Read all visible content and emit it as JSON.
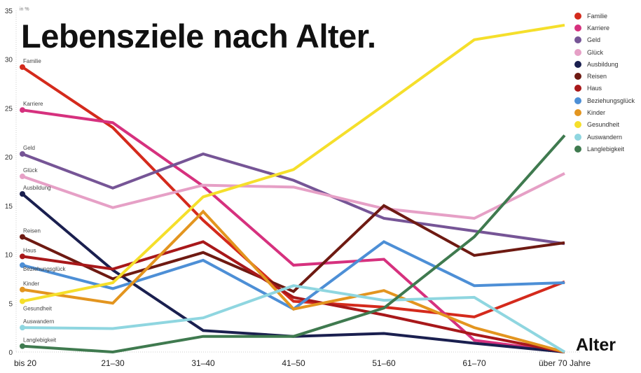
{
  "chart_data": {
    "type": "line",
    "title": "Lebensziele nach Alter.",
    "ylabel": "in %",
    "xlabel": "Alter",
    "ylim": [
      0,
      35
    ],
    "yticks": [
      0,
      5,
      10,
      15,
      20,
      25,
      30,
      35
    ],
    "grid": false,
    "legend_position": "top-right",
    "categories": [
      "bis 20",
      "21–30",
      "31–40",
      "41–50",
      "51–60",
      "61–70",
      "über 70 Jahre"
    ],
    "series": [
      {
        "name": "Familie",
        "color": "#d42a1c",
        "values": [
          29.2,
          23.0,
          13.5,
          5.2,
          4.6,
          3.6,
          7.2
        ]
      },
      {
        "name": "Karriere",
        "color": "#d6317e",
        "values": [
          24.8,
          23.5,
          17.0,
          8.9,
          9.5,
          1.2,
          0
        ]
      },
      {
        "name": "Geld",
        "color": "#765596",
        "values": [
          20.3,
          16.8,
          20.3,
          17.6,
          13.7,
          12.4,
          11.1
        ]
      },
      {
        "name": "Glück",
        "color": "#e6a0c6",
        "values": [
          18.0,
          14.8,
          17.1,
          16.9,
          14.7,
          13.7,
          18.3
        ]
      },
      {
        "name": "Ausbildung",
        "color": "#1a1f4f",
        "values": [
          16.2,
          8.4,
          2.2,
          1.6,
          1.9,
          0.9,
          0
        ]
      },
      {
        "name": "Reisen",
        "color": "#6e1a12",
        "values": [
          11.8,
          7.5,
          10.2,
          6.2,
          15.0,
          9.9,
          11.2
        ]
      },
      {
        "name": "Haus",
        "color": "#a8181a",
        "values": [
          9.8,
          8.5,
          11.3,
          5.6,
          3.8,
          1.8,
          0
        ]
      },
      {
        "name": "Beziehungsglück",
        "color": "#4d8fd6",
        "values": [
          8.9,
          6.5,
          9.4,
          4.4,
          11.3,
          6.8,
          7.1
        ]
      },
      {
        "name": "Kinder",
        "color": "#e3951f",
        "values": [
          6.4,
          5.0,
          14.4,
          4.4,
          6.3,
          2.5,
          0
        ]
      },
      {
        "name": "Gesundheit",
        "color": "#f5df2b",
        "values": [
          5.2,
          7.1,
          15.9,
          18.7,
          25.3,
          32.0,
          33.5
        ]
      },
      {
        "name": "Auswandern",
        "color": "#8fd6e0",
        "values": [
          2.5,
          2.4,
          3.5,
          6.8,
          5.3,
          5.6,
          0
        ]
      },
      {
        "name": "Langlebigkeit",
        "color": "#3f7a4f",
        "values": [
          0.6,
          0,
          1.6,
          1.6,
          4.5,
          11.8,
          22.2
        ]
      }
    ]
  }
}
